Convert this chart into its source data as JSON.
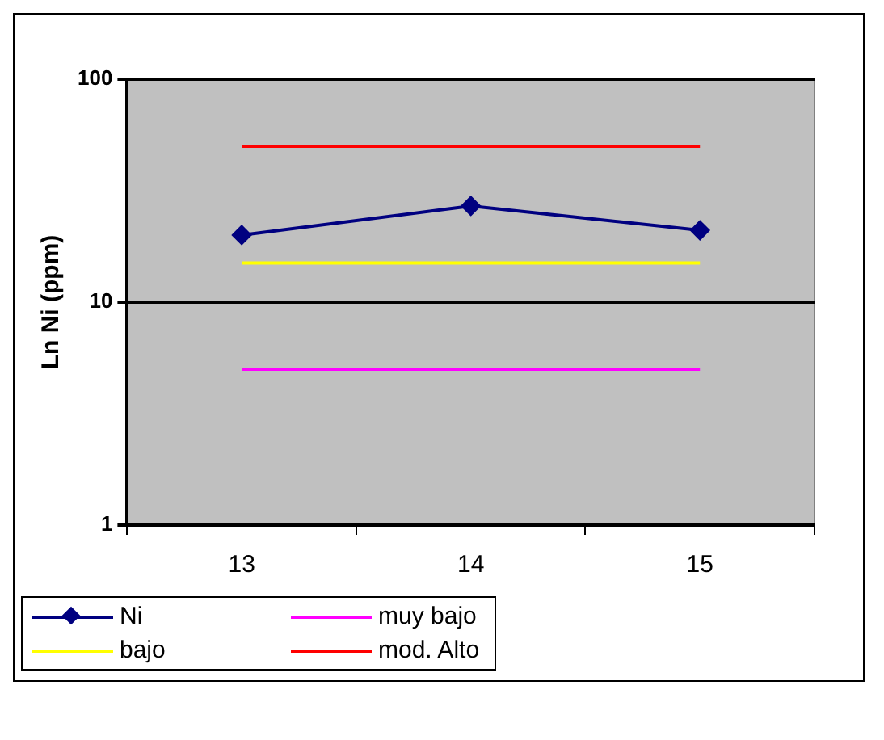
{
  "chart_data": {
    "type": "line",
    "ylabel": "Ln Ni (ppm)",
    "categories": [
      "13",
      "14",
      "15"
    ],
    "log": "y",
    "ylim": [
      1,
      100
    ],
    "yticks": [
      1,
      10,
      100
    ],
    "grid": "y",
    "legend": "bottom",
    "line_style": "solid",
    "series": [
      {
        "name": "Ni",
        "color": "#000080",
        "values": [
          20,
          27,
          21
        ],
        "marker": "diamond"
      },
      {
        "name": "muy bajo",
        "color": "#ff00ff",
        "values": [
          5,
          5,
          5
        ],
        "marker": "none"
      },
      {
        "name": "bajo",
        "color": "#ffff00",
        "values": [
          15,
          15,
          15
        ],
        "marker": "none"
      },
      {
        "name": "mod. Alto",
        "color": "#ff0000",
        "values": [
          50,
          50,
          50
        ],
        "marker": "none"
      }
    ]
  }
}
